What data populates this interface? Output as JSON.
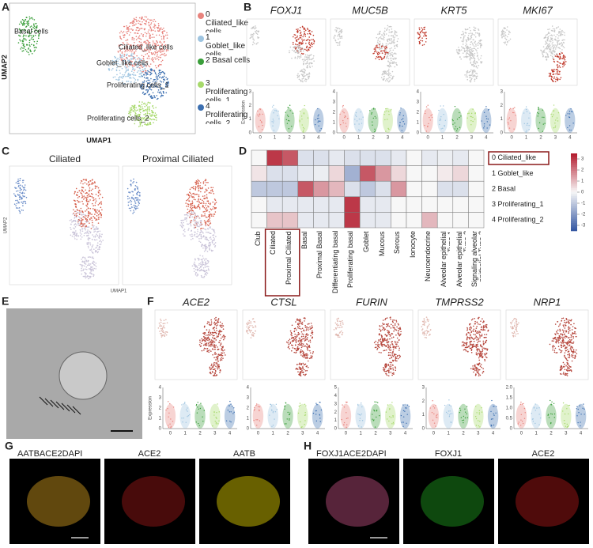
{
  "panel_a": {
    "label": "A",
    "plot_labels": [
      "Basal cells",
      "Ciliated_like cells",
      "Goblet_like cells",
      "Proliferating cells_1",
      "Proliferating cells_2"
    ],
    "legend": [
      {
        "text": "0 Ciliated_like cells",
        "color": "#e8837d"
      },
      {
        "text": "1 Goblet_like cells",
        "color": "#9ec4e0"
      },
      {
        "text": "2 Basal cells",
        "color": "#3a9e3a"
      },
      {
        "text": "3 Proliferating cells_1",
        "color": "#a6d96a"
      },
      {
        "text": "4 Proliferating cells_2",
        "color": "#3c6fb0"
      }
    ],
    "x_label": "UMAP1",
    "y_label": "UMAP2"
  },
  "panel_b": {
    "label": "B",
    "y_label": "Expression",
    "categories": [
      "0",
      "1",
      "2",
      "3",
      "4"
    ],
    "genes": [
      {
        "name": "FOXJ1",
        "yticks": [
          "0",
          "1",
          "2",
          "3"
        ]
      },
      {
        "name": "MUC5B",
        "yticks": [
          "0",
          "1",
          "2",
          "3",
          "4"
        ]
      },
      {
        "name": "KRT5",
        "yticks": [
          "0",
          "1",
          "2",
          "3",
          "4"
        ]
      },
      {
        "name": "MKI67",
        "yticks": [
          "0",
          "1",
          "2",
          "3"
        ]
      }
    ]
  },
  "panel_c": {
    "label": "C",
    "titles": [
      "Ciliated",
      "Proximal Ciliated"
    ],
    "x_label": "UMAP1",
    "y_label": "UMAP2"
  },
  "panel_d": {
    "label": "D",
    "rows": [
      "0 Ciliated_like",
      "1 Goblet_like",
      "2 Basal",
      "3 Proliferating_1",
      "4 Proliferating_2"
    ],
    "columns": [
      "Club",
      "Ciliated",
      "Proximal Ciliated",
      "Basal",
      "Proximal Basal",
      "Differentiating basal",
      "Proliferating basal",
      "Goblet",
      "Mucous",
      "Serous",
      "Ionocyte",
      "Neuroendocrine",
      "Alveolar epithelial Type 1",
      "Alveolar epithelial Type 2",
      "Signaling alveolar epithelial Type 2"
    ],
    "values": [
      [
        0,
        3,
        2.5,
        -0.5,
        -0.5,
        -0.3,
        -0.5,
        -0.5,
        -0.5,
        -0.3,
        0,
        -0.3,
        -0.2,
        -0.3,
        0
      ],
      [
        0.3,
        -0.5,
        -0.5,
        -0.3,
        -0.2,
        0.5,
        -1.5,
        2.5,
        1.5,
        0.5,
        0,
        0,
        0.2,
        0.5,
        0
      ],
      [
        -1,
        -1,
        -1,
        2.5,
        1.5,
        1,
        -0.5,
        -1,
        -0.5,
        1.5,
        0,
        0,
        -0.5,
        -0.5,
        0
      ],
      [
        0,
        -0.3,
        -0.3,
        -0.3,
        -0.3,
        -0.3,
        3,
        -0.3,
        -0.3,
        0,
        0,
        0,
        0,
        0,
        0
      ],
      [
        0,
        0.8,
        0.8,
        -0.3,
        -0.3,
        -0.3,
        3,
        -0.3,
        -0.3,
        0,
        0,
        1,
        0,
        0,
        0
      ]
    ],
    "clim": [
      -3.5,
      3.5
    ],
    "cticks": [
      3,
      2,
      1,
      0,
      -1,
      -2,
      -3
    ]
  },
  "panel_e": {
    "label": "E"
  },
  "panel_f": {
    "label": "F",
    "y_label": "Expression",
    "categories": [
      "0",
      "1",
      "2",
      "3",
      "4"
    ],
    "genes": [
      {
        "name": "ACE2",
        "yticks": [
          "0",
          "1",
          "2",
          "3",
          "4"
        ]
      },
      {
        "name": "CTSL",
        "yticks": [
          "0",
          "1",
          "2",
          "3",
          "4"
        ]
      },
      {
        "name": "FURIN",
        "yticks": [
          "0",
          "1",
          "2",
          "3",
          "4",
          "5"
        ]
      },
      {
        "name": "TMPRSS2",
        "yticks": [
          "0",
          "1",
          "2",
          "3"
        ]
      },
      {
        "name": "NRP1",
        "yticks": [
          "0",
          "0.5",
          "1.0",
          "1.5",
          "2.0"
        ]
      }
    ]
  },
  "panel_g": {
    "label": "G",
    "merge": [
      "AATB",
      "ACE2",
      "DAPI"
    ],
    "single": [
      "ACE2",
      "AATB"
    ]
  },
  "panel_h": {
    "label": "H",
    "merge": [
      "FOXJ1",
      "ACE2",
      "DAPI"
    ],
    "single": [
      "FOXJ1",
      "ACE2"
    ]
  }
}
